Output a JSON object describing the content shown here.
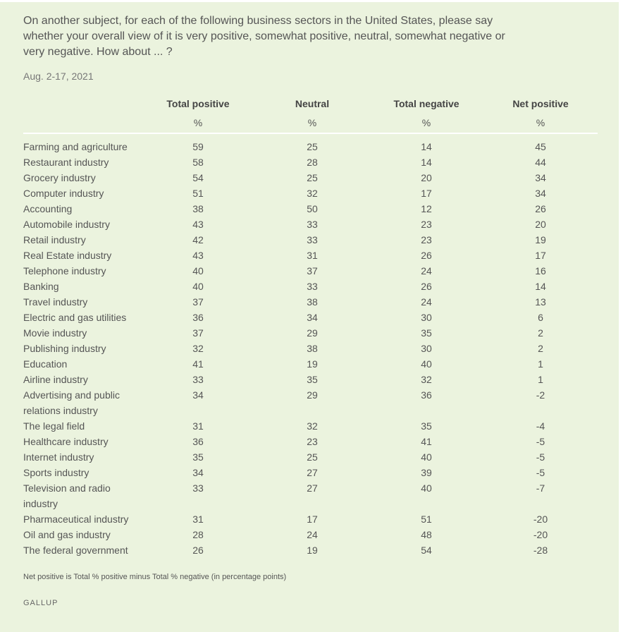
{
  "question": "On another subject, for each of the following business sectors in the United States, please say whether your overall view of it is very positive, somewhat positive, neutral, somewhat negative or very negative. How about ... ?",
  "date": "Aug. 2-17, 2021",
  "note": "Net positive is Total % positive minus Total % negative (in percentage points)",
  "brand": "GALLUP",
  "colors": {
    "background": "#ebf3de",
    "text": "#555555",
    "rule": "#ffffff"
  },
  "chart_data": {
    "type": "table",
    "columns": [
      "Total positive",
      "Neutral",
      "Total negative",
      "Net positive"
    ],
    "units": [
      "%",
      "%",
      "%",
      "%"
    ],
    "rows": [
      {
        "label": "Farming and agriculture",
        "values": [
          59,
          25,
          14,
          45
        ]
      },
      {
        "label": "Restaurant industry",
        "values": [
          58,
          28,
          14,
          44
        ]
      },
      {
        "label": "Grocery industry",
        "values": [
          54,
          25,
          20,
          34
        ]
      },
      {
        "label": "Computer industry",
        "values": [
          51,
          32,
          17,
          34
        ]
      },
      {
        "label": "Accounting",
        "values": [
          38,
          50,
          12,
          26
        ]
      },
      {
        "label": "Automobile industry",
        "values": [
          43,
          33,
          23,
          20
        ]
      },
      {
        "label": "Retail industry",
        "values": [
          42,
          33,
          23,
          19
        ]
      },
      {
        "label": "Real Estate industry",
        "values": [
          43,
          31,
          26,
          17
        ]
      },
      {
        "label": "Telephone industry",
        "values": [
          40,
          37,
          24,
          16
        ]
      },
      {
        "label": "Banking",
        "values": [
          40,
          33,
          26,
          14
        ]
      },
      {
        "label": "Travel industry",
        "values": [
          37,
          38,
          24,
          13
        ]
      },
      {
        "label": "Electric and gas utilities",
        "values": [
          36,
          34,
          30,
          6
        ]
      },
      {
        "label": "Movie industry",
        "values": [
          37,
          29,
          35,
          2
        ]
      },
      {
        "label": "Publishing industry",
        "values": [
          32,
          38,
          30,
          2
        ]
      },
      {
        "label": "Education",
        "values": [
          41,
          19,
          40,
          1
        ]
      },
      {
        "label": "Airline industry",
        "values": [
          33,
          35,
          32,
          1
        ]
      },
      {
        "label": "Advertising and public relations industry",
        "values": [
          34,
          29,
          36,
          -2
        ]
      },
      {
        "label": "The legal field",
        "values": [
          31,
          32,
          35,
          -4
        ]
      },
      {
        "label": "Healthcare industry",
        "values": [
          36,
          23,
          41,
          -5
        ]
      },
      {
        "label": "Internet industry",
        "values": [
          35,
          25,
          40,
          -5
        ]
      },
      {
        "label": "Sports industry",
        "values": [
          34,
          27,
          39,
          -5
        ]
      },
      {
        "label": "Television and radio industry",
        "values": [
          33,
          27,
          40,
          -7
        ]
      },
      {
        "label": "Pharmaceutical industry",
        "values": [
          31,
          17,
          51,
          -20
        ]
      },
      {
        "label": "Oil and gas industry",
        "values": [
          28,
          24,
          48,
          -20
        ]
      },
      {
        "label": "The federal government",
        "values": [
          26,
          19,
          54,
          -28
        ]
      }
    ]
  }
}
